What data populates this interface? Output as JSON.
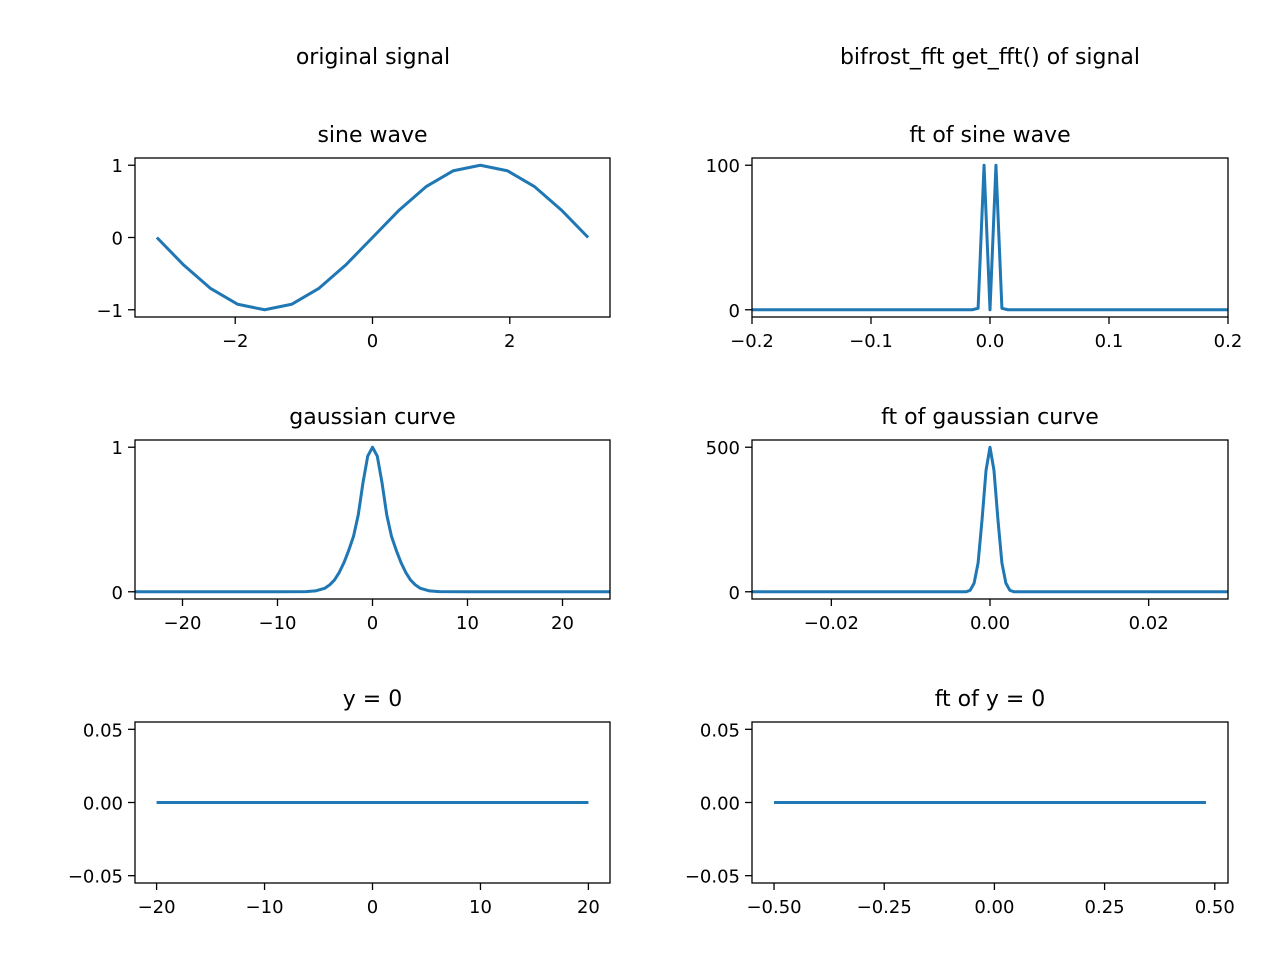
{
  "figure": {
    "left_title": "original signal",
    "right_title": "bifrost_fft get_fft() of signal",
    "line_color": "#1f77b4"
  },
  "chart_data": [
    {
      "type": "line",
      "title": "sine wave",
      "xlim": [
        -3.46,
        3.46
      ],
      "ylim": [
        -1.1,
        1.1
      ],
      "xticks": [
        -2,
        0,
        2
      ],
      "xtick_labels": [
        "−2",
        "0",
        "2"
      ],
      "yticks": [
        -1,
        0,
        1
      ],
      "ytick_labels": [
        "−1",
        "0",
        "1"
      ],
      "series": [
        {
          "x": [
            -3.1416,
            -2.7489,
            -2.3562,
            -1.9635,
            -1.5708,
            -1.1781,
            -0.7854,
            -0.3927,
            0,
            0.3927,
            0.7854,
            1.1781,
            1.5708,
            1.9635,
            2.3562,
            2.7489,
            3.1416
          ],
          "y": [
            0,
            -0.383,
            -0.707,
            -0.924,
            -1,
            -0.924,
            -0.707,
            -0.383,
            0,
            0.383,
            0.707,
            0.924,
            1,
            0.924,
            0.707,
            0.383,
            0
          ]
        }
      ]
    },
    {
      "type": "line",
      "title": "ft of sine wave",
      "xlim": [
        -0.2,
        0.2
      ],
      "ylim": [
        -5,
        105
      ],
      "xticks": [
        -0.2,
        -0.1,
        0.0,
        0.1,
        0.2
      ],
      "xtick_labels": [
        "−0.2",
        "−0.1",
        "0.0",
        "0.1",
        "0.2"
      ],
      "yticks": [
        0,
        100
      ],
      "ytick_labels": [
        "0",
        "100"
      ],
      "series": [
        {
          "x": [
            -0.2,
            -0.015,
            -0.01,
            -0.005,
            0.0,
            0.005,
            0.01,
            0.015,
            0.2
          ],
          "y": [
            0,
            0,
            1,
            100,
            0,
            100,
            1,
            0,
            0
          ]
        }
      ]
    },
    {
      "type": "line",
      "title": "gaussian curve",
      "xlim": [
        -25,
        25
      ],
      "ylim": [
        -0.05,
        1.05
      ],
      "xticks": [
        -20,
        -10,
        0,
        10,
        20
      ],
      "xtick_labels": [
        "−20",
        "−10",
        "0",
        "10",
        "20"
      ],
      "yticks": [
        0,
        1
      ],
      "ytick_labels": [
        "0",
        "1"
      ],
      "series": [
        {
          "x": [
            -25,
            -10,
            -7,
            -6,
            -5,
            -4.5,
            -4,
            -3.5,
            -3,
            -2.5,
            -2,
            -1.5,
            -1,
            -0.5,
            0,
            0.5,
            1,
            1.5,
            2,
            2.5,
            3,
            3.5,
            4,
            4.5,
            5,
            6,
            7,
            10,
            25
          ],
          "y": [
            0,
            0,
            0.001,
            0.006,
            0.025,
            0.048,
            0.082,
            0.134,
            0.202,
            0.287,
            0.383,
            0.532,
            0.755,
            0.939,
            1,
            0.939,
            0.755,
            0.532,
            0.383,
            0.287,
            0.202,
            0.134,
            0.082,
            0.048,
            0.025,
            0.006,
            0.001,
            0,
            0
          ]
        }
      ]
    },
    {
      "type": "line",
      "title": "ft of gaussian curve",
      "xlim": [
        -0.03,
        0.03
      ],
      "ylim": [
        -25,
        525
      ],
      "xticks": [
        -0.02,
        0.0,
        0.02
      ],
      "xtick_labels": [
        "−0.02",
        "0.00",
        "0.02"
      ],
      "yticks": [
        0,
        500
      ],
      "ytick_labels": [
        "0",
        "500"
      ],
      "series": [
        {
          "x": [
            -0.03,
            -0.003,
            -0.0025,
            -0.002,
            -0.0015,
            -0.001,
            -0.0005,
            0,
            0.0005,
            0.001,
            0.0015,
            0.002,
            0.0025,
            0.003,
            0.03
          ],
          "y": [
            0,
            0,
            5,
            30,
            100,
            250,
            420,
            500,
            420,
            250,
            100,
            30,
            5,
            0,
            0
          ]
        }
      ]
    },
    {
      "type": "line",
      "title": "y = 0",
      "xlim": [
        -22,
        22
      ],
      "ylim": [
        -0.055,
        0.055
      ],
      "xticks": [
        -20,
        -10,
        0,
        10,
        20
      ],
      "xtick_labels": [
        "−20",
        "−10",
        "0",
        "10",
        "20"
      ],
      "yticks": [
        -0.05,
        0.0,
        0.05
      ],
      "ytick_labels": [
        "−0.05",
        "0.00",
        "0.05"
      ],
      "series": [
        {
          "x": [
            -20,
            20
          ],
          "y": [
            0,
            0
          ]
        }
      ]
    },
    {
      "type": "line",
      "title": "ft of y = 0",
      "xlim": [
        -0.55,
        0.53
      ],
      "ylim": [
        -0.055,
        0.055
      ],
      "xticks": [
        -0.5,
        -0.25,
        0.0,
        0.25,
        0.5
      ],
      "xtick_labels": [
        "−0.50",
        "−0.25",
        "0.00",
        "0.25",
        "0.50"
      ],
      "yticks": [
        -0.05,
        0.0,
        0.05
      ],
      "ytick_labels": [
        "−0.05",
        "0.00",
        "0.05"
      ],
      "series": [
        {
          "x": [
            -0.5,
            0.48
          ],
          "y": [
            0,
            0
          ]
        }
      ]
    }
  ]
}
